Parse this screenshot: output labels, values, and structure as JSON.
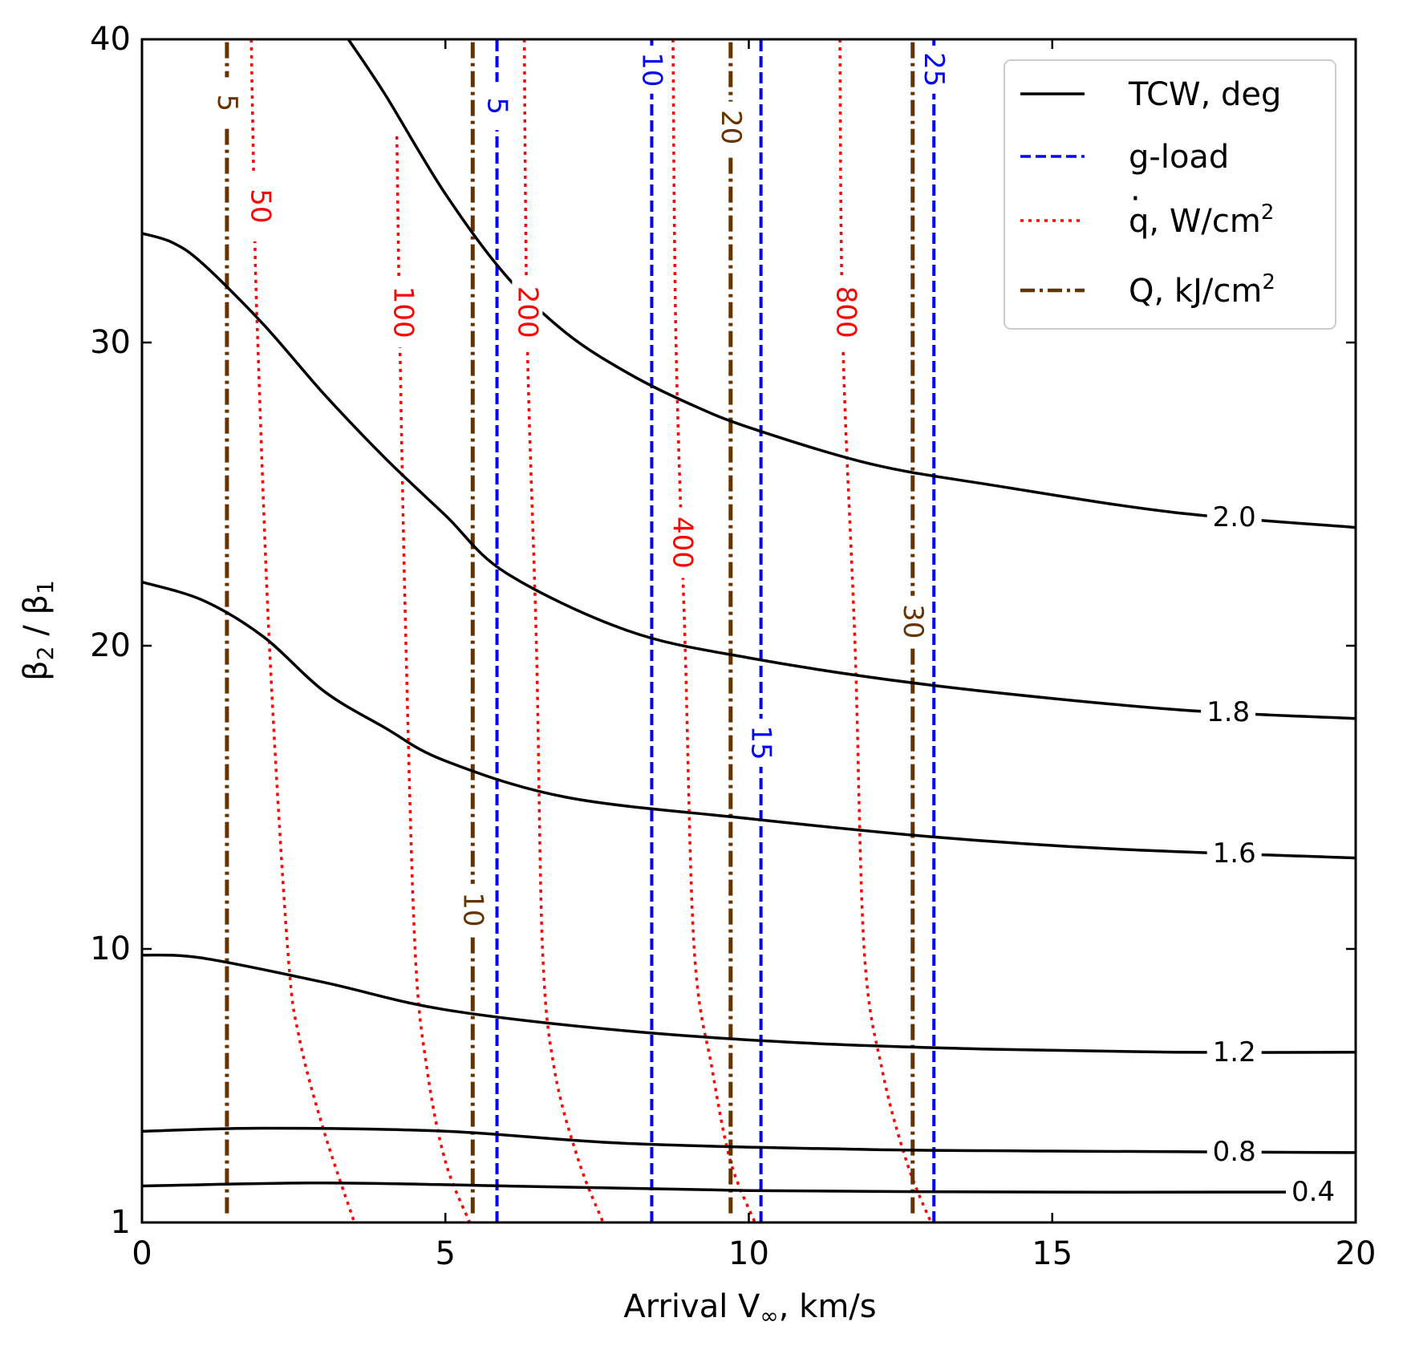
{
  "chart_data": {
    "type": "line",
    "xlabel_main": "Arrival V",
    "xlabel_sub": "∞",
    "xlabel_tail": ", km/s",
    "ylabel_beta_num": "β",
    "ylabel_num_sub": "2",
    "ylabel_sep": " / ",
    "ylabel_beta_den": "β",
    "ylabel_den_sub": "1",
    "xlim": [
      0,
      20
    ],
    "ylim": [
      1,
      40
    ],
    "y_axis_bottom_value": 1,
    "y_axis_breakpoint": 10,
    "x_ticks": [
      "0",
      "5",
      "10",
      "15",
      "20"
    ],
    "y_ticks": [
      "1",
      "10",
      "20",
      "30",
      "40"
    ],
    "legend_position": "top-right",
    "legend": {
      "tcw": "TCW, deg",
      "gload": "g-load",
      "qdot_q": "q",
      "qdot_dot": "·",
      "qdot_rest": ", W/cm",
      "qdot_sup": "2",
      "Q_main": "Q, kJ/cm",
      "Q_sup": "2"
    },
    "colors": {
      "tcw": "#000000",
      "gload": "#0000ff",
      "heat_rate": "#ff0000",
      "heat_load": "#663300"
    },
    "tcw_contours": [
      {
        "label": "0.4",
        "label_x": 19.3,
        "points": [
          [
            0,
            2.2
          ],
          [
            3,
            2.3
          ],
          [
            6,
            2.2
          ],
          [
            10,
            2.05
          ],
          [
            15,
            2.0
          ],
          [
            19,
            2.0
          ]
        ]
      },
      {
        "label": "0.8",
        "label_x": 18.0,
        "points": [
          [
            0,
            4.0
          ],
          [
            2,
            4.1
          ],
          [
            5,
            4.0
          ],
          [
            8,
            3.6
          ],
          [
            12,
            3.4
          ],
          [
            15,
            3.35
          ],
          [
            20,
            3.3
          ]
        ]
      },
      {
        "label": "1.2",
        "label_x": 18.0,
        "points": [
          [
            0,
            9.8
          ],
          [
            1,
            9.7
          ],
          [
            3,
            8.9
          ],
          [
            5,
            8.0
          ],
          [
            8,
            7.3
          ],
          [
            11,
            6.9
          ],
          [
            14,
            6.7
          ],
          [
            17,
            6.6
          ],
          [
            20,
            6.6
          ]
        ]
      },
      {
        "label": "1.6",
        "label_x": 18.0,
        "points": [
          [
            0,
            22.1
          ],
          [
            1,
            21.5
          ],
          [
            2,
            20.3
          ],
          [
            3,
            18.5
          ],
          [
            4,
            17.3
          ],
          [
            5,
            16.2
          ],
          [
            7,
            15.0
          ],
          [
            10,
            14.3
          ],
          [
            13,
            13.7
          ],
          [
            16,
            13.3
          ],
          [
            20,
            13.0
          ]
        ]
      },
      {
        "label": "1.8",
        "label_x": 17.9,
        "points": [
          [
            0,
            33.6
          ],
          [
            0.5,
            33.3
          ],
          [
            1,
            32.6
          ],
          [
            2,
            30.6
          ],
          [
            3,
            28.3
          ],
          [
            4,
            26.2
          ],
          [
            5,
            24.3
          ],
          [
            6,
            22.4
          ],
          [
            8,
            20.5
          ],
          [
            10,
            19.6
          ],
          [
            13,
            18.7
          ],
          [
            17,
            17.9
          ],
          [
            20,
            17.6
          ]
        ]
      },
      {
        "label": "2.0",
        "label_x": 18.0,
        "points": [
          [
            3.4,
            40
          ],
          [
            4,
            38.2
          ],
          [
            5,
            34.9
          ],
          [
            6,
            32.2
          ],
          [
            7,
            30.3
          ],
          [
            8,
            29.0
          ],
          [
            9,
            28.0
          ],
          [
            10,
            27.2
          ],
          [
            12,
            26.0
          ],
          [
            14,
            25.3
          ],
          [
            17,
            24.4
          ],
          [
            20,
            23.9
          ]
        ]
      }
    ],
    "gload_lines": [
      {
        "label": "5",
        "x": 5.85
      },
      {
        "label": "10",
        "x": 8.4
      },
      {
        "label": "15",
        "x": 10.2
      },
      {
        "label": "25",
        "x": 13.05
      }
    ],
    "heat_rate_contours": [
      {
        "label": "50",
        "points": [
          [
            1.8,
            40
          ],
          [
            1.85,
            34.5
          ],
          [
            1.9,
            30.5
          ],
          [
            2.1,
            20.0
          ],
          [
            2.4,
            10.0
          ],
          [
            2.6,
            7.0
          ],
          [
            3.0,
            4.0
          ],
          [
            3.5,
            1
          ]
        ]
      },
      {
        "label": "100",
        "points": [
          [
            4.2,
            36.8
          ],
          [
            4.25,
            30.0
          ],
          [
            4.35,
            20.0
          ],
          [
            4.5,
            10.0
          ],
          [
            4.7,
            6.0
          ],
          [
            5.0,
            3.0
          ],
          [
            5.4,
            1
          ]
        ]
      },
      {
        "label": "200",
        "points": [
          [
            6.3,
            40
          ],
          [
            6.35,
            30.0
          ],
          [
            6.5,
            20.0
          ],
          [
            6.6,
            10.0
          ],
          [
            6.8,
            6.0
          ],
          [
            7.2,
            3.0
          ],
          [
            7.6,
            1
          ]
        ]
      },
      {
        "label": "400",
        "points": [
          [
            8.75,
            40
          ],
          [
            8.8,
            30.0
          ],
          [
            8.95,
            20.0
          ],
          [
            9.1,
            10.0
          ],
          [
            9.4,
            6.0
          ],
          [
            9.7,
            3.0
          ],
          [
            10.1,
            1
          ]
        ]
      },
      {
        "label": "800",
        "points": [
          [
            11.5,
            40
          ],
          [
            11.55,
            30.0
          ],
          [
            11.75,
            20.0
          ],
          [
            11.9,
            10.0
          ],
          [
            12.2,
            6.0
          ],
          [
            12.6,
            3.0
          ],
          [
            13.0,
            1
          ]
        ]
      }
    ],
    "heat_load_lines": [
      {
        "label": "5",
        "x": 1.4
      },
      {
        "label": "10",
        "x": 5.45
      },
      {
        "label": "20",
        "x": 9.7
      },
      {
        "label": "30",
        "x": 12.7
      }
    ]
  }
}
